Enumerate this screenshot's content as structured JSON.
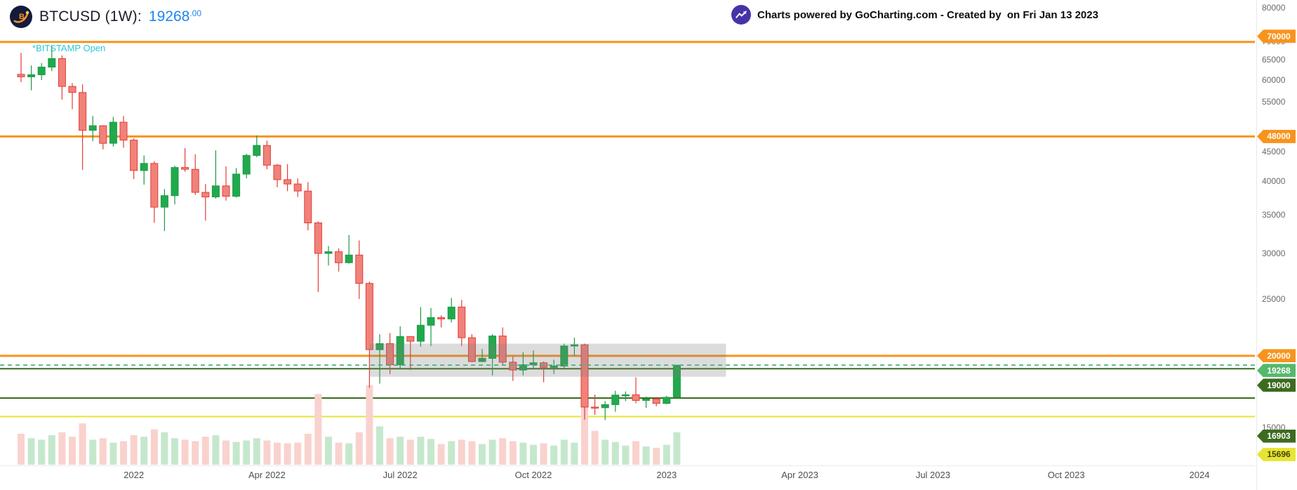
{
  "header": {
    "symbol_title": "BTCUSD (1W):",
    "price_main": "19268",
    "price_decimals": ".00",
    "exchange_status": "*BITSTAMP Open",
    "watermark": "Charts powered by GoCharting.com - Created by  on Fri Jan 13 2023"
  },
  "colors": {
    "up": "#1b9a45",
    "up_fill": "#21a94d",
    "down": "#e53c35",
    "down_fill": "#f0827a",
    "vol_up": "#c5e8cd",
    "vol_down": "#f9d2ce",
    "price_blue": "#1f86f0",
    "bitstamp_teal": "#2bc8d9",
    "box_gray": "rgba(125,125,125,0.27)"
  },
  "y_axis": {
    "labels": [
      80000,
      70000,
      65000,
      60000,
      55000,
      45000,
      40000,
      35000,
      30000,
      25000,
      15000
    ]
  },
  "x_axis": {
    "labels": [
      {
        "label": "2022",
        "week": 11
      },
      {
        "label": "Apr 2022",
        "week": 24
      },
      {
        "label": "Jul 2022",
        "week": 37
      },
      {
        "label": "Oct 2022",
        "week": 50
      },
      {
        "label": "2023",
        "week": 63
      },
      {
        "label": "Apr 2023",
        "week": 76
      },
      {
        "label": "Jul 2023",
        "week": 89
      },
      {
        "label": "Oct 2023",
        "week": 102
      },
      {
        "label": "2024",
        "week": 115
      }
    ]
  },
  "levels": [
    {
      "price": 70000,
      "label": "70000",
      "style": "solid",
      "width": 3,
      "color": "#f7941d",
      "badge_bg": "#f7941d",
      "badge_fg": "#ffffff",
      "badge_offset": -8
    },
    {
      "price": 48000,
      "label": "48000",
      "style": "solid",
      "width": 3,
      "color": "#f7941d",
      "badge_bg": "#f7941d",
      "badge_fg": "#ffffff",
      "badge_offset": 0
    },
    {
      "price": 20000,
      "label": "20000",
      "style": "solid",
      "width": 3,
      "color": "#f7941d",
      "badge_bg": "#f7941d",
      "badge_fg": "#ffffff",
      "badge_offset": 0
    },
    {
      "price": 19268,
      "label": "19268",
      "style": "dashed",
      "width": 1.6,
      "color": "#3cb878",
      "badge_bg": "#55b96d",
      "badge_fg": "#ffffff",
      "badge_offset": 0
    },
    {
      "price": 19000,
      "label": "19000",
      "style": "solid",
      "width": 2,
      "color": "#3c6b1f",
      "badge_bg": "#3c6b1f",
      "badge_fg": "#ffffff",
      "badge_offset": 0
    },
    {
      "price": 16903,
      "label": "16903",
      "style": "solid",
      "width": 2,
      "color": "#3c6b1f",
      "badge_bg": "#3c6b1f",
      "badge_fg": "#ffffff",
      "badge_offset": 54
    },
    {
      "price": 15696,
      "label": "15696",
      "style": "solid",
      "width": 2,
      "color": "#e8e433",
      "badge_bg": "#e8e433",
      "badge_fg": "#44440a",
      "badge_offset": 54
    }
  ],
  "chart_data": {
    "type": "candlestick",
    "title": "BTCUSD (1W)",
    "symbol": "BTCUSD",
    "timeframe": "1W",
    "exchange": "BITSTAMP",
    "yscale": "log",
    "ylim": [
      13800,
      80500
    ],
    "x_range": [
      "2021-10-18",
      "2024-01-01"
    ],
    "last_price": 19268.0,
    "range_box": {
      "week_start": 34,
      "week_end": 68.8,
      "price_top": 21000,
      "price_bottom": 18400
    },
    "candle_columns": [
      "week_start_date",
      "open",
      "high",
      "low",
      "close",
      "volume_rel"
    ],
    "candles": [
      [
        "2021-10-18",
        61500,
        67000,
        59600,
        60900,
        42
      ],
      [
        "2021-10-25",
        60900,
        63700,
        57700,
        61400,
        36
      ],
      [
        "2021-11-01",
        61400,
        64300,
        60100,
        63300,
        34
      ],
      [
        "2021-11-08",
        63300,
        69000,
        62300,
        65500,
        40
      ],
      [
        "2021-11-15",
        65500,
        66300,
        55600,
        58600,
        44
      ],
      [
        "2021-11-22",
        58600,
        59400,
        53500,
        57200,
        38
      ],
      [
        "2021-11-29",
        57200,
        59100,
        42000,
        49200,
        56
      ],
      [
        "2021-12-06",
        49200,
        52100,
        47100,
        50100,
        34
      ],
      [
        "2021-12-13",
        50100,
        50200,
        45600,
        46700,
        36
      ],
      [
        "2021-12-20",
        46700,
        51900,
        46100,
        50800,
        30
      ],
      [
        "2021-12-27",
        50800,
        52100,
        45900,
        47300,
        32
      ],
      [
        "2022-01-03",
        47300,
        47600,
        40500,
        41900,
        40
      ],
      [
        "2022-01-10",
        41900,
        44500,
        39600,
        43100,
        38
      ],
      [
        "2022-01-17",
        43100,
        43500,
        34000,
        36200,
        48
      ],
      [
        "2022-01-24",
        36200,
        38900,
        32900,
        37900,
        44
      ],
      [
        "2022-01-31",
        37900,
        42700,
        36600,
        42400,
        36
      ],
      [
        "2022-02-07",
        42400,
        45800,
        41700,
        42100,
        34
      ],
      [
        "2022-02-14",
        42100,
        44700,
        38000,
        38400,
        32
      ],
      [
        "2022-02-21",
        38400,
        39700,
        34300,
        37700,
        38
      ],
      [
        "2022-02-28",
        37700,
        45400,
        37450,
        39400,
        40
      ],
      [
        "2022-03-07",
        39400,
        42600,
        37155,
        37800,
        33
      ],
      [
        "2022-03-14",
        37800,
        42300,
        37600,
        41300,
        31
      ],
      [
        "2022-03-21",
        41300,
        44800,
        40600,
        44500,
        33
      ],
      [
        "2022-03-28",
        44500,
        48200,
        44200,
        46300,
        36
      ],
      [
        "2022-04-04",
        46300,
        47200,
        42100,
        42800,
        33
      ],
      [
        "2022-04-11",
        42800,
        43000,
        39200,
        40400,
        30
      ],
      [
        "2022-04-18",
        40400,
        42990,
        38600,
        39700,
        29
      ],
      [
        "2022-04-25",
        39700,
        40600,
        37700,
        38600,
        30
      ],
      [
        "2022-05-02",
        38600,
        40000,
        33000,
        34000,
        42
      ],
      [
        "2022-05-09",
        34000,
        34200,
        25800,
        30100,
        96
      ],
      [
        "2022-05-16",
        30100,
        31000,
        28700,
        30300,
        38
      ],
      [
        "2022-05-23",
        30300,
        30700,
        28000,
        29000,
        30
      ],
      [
        "2022-05-30",
        29000,
        32400,
        28900,
        29900,
        29
      ],
      [
        "2022-06-06",
        29900,
        31700,
        25100,
        26700,
        44
      ],
      [
        "2022-06-13",
        26700,
        26900,
        17600,
        20500,
        108
      ],
      [
        "2022-06-20",
        20500,
        21800,
        17900,
        21000,
        52
      ],
      [
        "2022-06-27",
        21000,
        21900,
        18600,
        19300,
        36
      ],
      [
        "2022-07-04",
        19300,
        22500,
        19000,
        21600,
        38
      ],
      [
        "2022-07-11",
        21600,
        21600,
        18900,
        21200,
        34
      ],
      [
        "2022-07-18",
        21200,
        24300,
        20750,
        22600,
        38
      ],
      [
        "2022-07-25",
        22600,
        24200,
        20800,
        23300,
        35
      ],
      [
        "2022-08-01",
        23300,
        23500,
        22400,
        23175,
        28
      ],
      [
        "2022-08-08",
        23175,
        25200,
        22850,
        24300,
        32
      ],
      [
        "2022-08-15",
        24300,
        25000,
        20800,
        21500,
        34
      ],
      [
        "2022-08-22",
        21500,
        21800,
        19500,
        19550,
        32
      ],
      [
        "2022-08-29",
        19550,
        20550,
        19500,
        19800,
        28
      ],
      [
        "2022-09-05",
        19800,
        21800,
        18500,
        21650,
        34
      ],
      [
        "2022-09-12",
        21650,
        22400,
        19300,
        19500,
        36
      ],
      [
        "2022-09-19",
        19500,
        19950,
        18100,
        18900,
        32
      ],
      [
        "2022-09-26",
        18900,
        20300,
        18500,
        19300,
        30
      ],
      [
        "2022-10-03",
        19300,
        20450,
        19050,
        19450,
        27
      ],
      [
        "2022-10-10",
        19450,
        19550,
        18000,
        19100,
        29
      ],
      [
        "2022-10-17",
        19100,
        19700,
        18600,
        19200,
        26
      ],
      [
        "2022-10-24",
        19200,
        21000,
        19000,
        20800,
        34
      ],
      [
        "2022-10-31",
        20800,
        21500,
        20000,
        20900,
        30
      ],
      [
        "2022-11-07",
        20900,
        21000,
        15500,
        16300,
        102
      ],
      [
        "2022-11-14",
        16300,
        17130,
        15800,
        16260,
        46
      ],
      [
        "2022-11-21",
        16260,
        16700,
        15480,
        16460,
        34
      ],
      [
        "2022-11-28",
        16460,
        17400,
        16000,
        17100,
        31
      ],
      [
        "2022-12-05",
        17100,
        17350,
        16700,
        17120,
        26
      ],
      [
        "2022-12-12",
        17120,
        18350,
        16550,
        16740,
        32
      ],
      [
        "2022-12-19",
        16740,
        17000,
        16250,
        16840,
        25
      ],
      [
        "2022-12-26",
        16840,
        16970,
        16350,
        16540,
        23
      ],
      [
        "2023-01-02",
        16540,
        17050,
        16490,
        16950,
        27
      ],
      [
        "2023-01-09",
        16950,
        19270,
        16920,
        19268,
        44
      ]
    ]
  }
}
